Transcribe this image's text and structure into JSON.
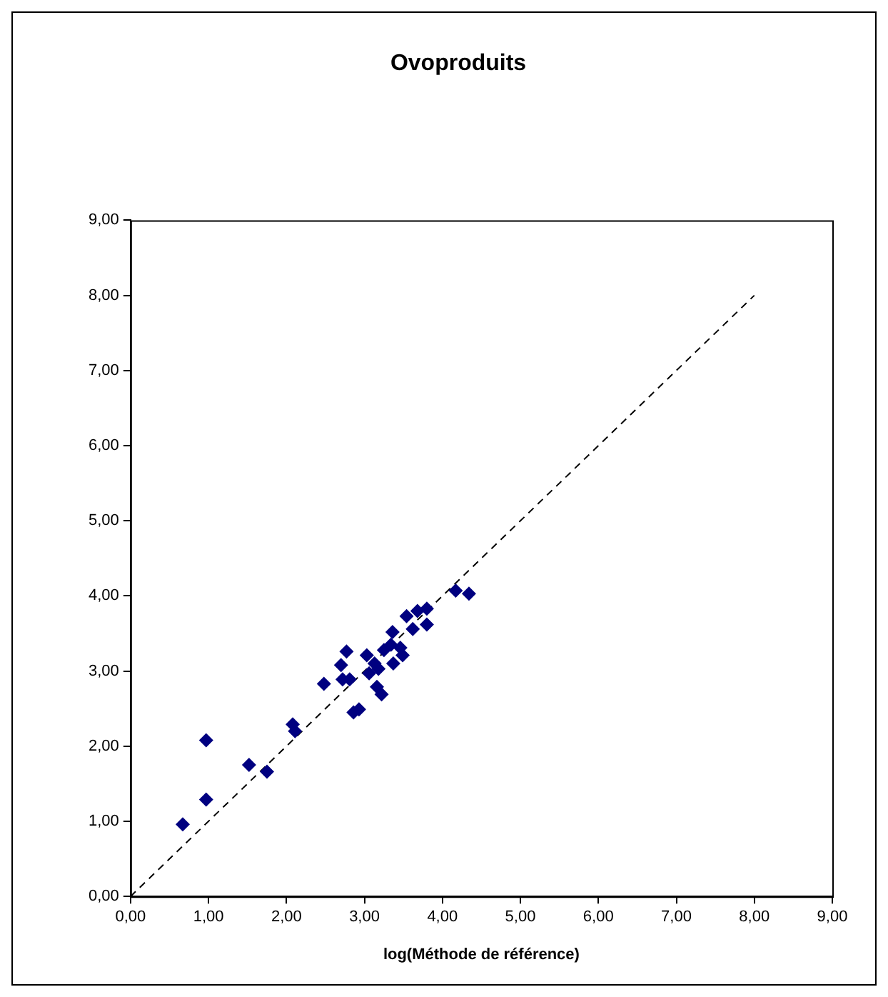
{
  "chart_data": {
    "type": "scatter",
    "title": "Ovoproduits",
    "xlabel": "log(Méthode de référence)",
    "xlim": [
      0,
      9
    ],
    "ylim": [
      0,
      9
    ],
    "xticks": [
      {
        "value": 0,
        "label": "0,00"
      },
      {
        "value": 1,
        "label": "1,00"
      },
      {
        "value": 2,
        "label": "2,00"
      },
      {
        "value": 3,
        "label": "3,00"
      },
      {
        "value": 4,
        "label": "4,00"
      },
      {
        "value": 5,
        "label": "5,00"
      },
      {
        "value": 6,
        "label": "6,00"
      },
      {
        "value": 7,
        "label": "7,00"
      },
      {
        "value": 8,
        "label": "8,00"
      },
      {
        "value": 9,
        "label": "9,00"
      }
    ],
    "yticks": [
      {
        "value": 0,
        "label": "0,00"
      },
      {
        "value": 1,
        "label": "1,00"
      },
      {
        "value": 2,
        "label": "2,00"
      },
      {
        "value": 3,
        "label": "3,00"
      },
      {
        "value": 4,
        "label": "4,00"
      },
      {
        "value": 5,
        "label": "5,00"
      },
      {
        "value": 6,
        "label": "6,00"
      },
      {
        "value": 7,
        "label": "7,00"
      },
      {
        "value": 8,
        "label": "8,00"
      },
      {
        "value": 9,
        "label": "9,00"
      }
    ],
    "grid": false,
    "legend": false,
    "series": [
      {
        "type": "scatter",
        "color": "#000080",
        "marker": "diamond",
        "x": [
          0.67,
          0.97,
          0.97,
          1.52,
          1.75,
          2.08,
          2.11,
          2.48,
          2.93,
          2.86,
          2.77,
          2.7,
          2.72,
          2.81,
          3.03,
          3.13,
          3.06,
          3.18,
          3.22,
          3.16,
          3.25,
          3.36,
          3.34,
          3.49,
          3.46,
          3.68,
          3.8,
          3.62,
          3.8,
          3.54,
          4.17,
          4.34,
          3.37
        ],
        "values": [
          0.96,
          2.08,
          1.29,
          1.75,
          1.66,
          2.29,
          2.2,
          2.83,
          2.49,
          2.45,
          3.26,
          3.08,
          2.89,
          2.89,
          3.21,
          3.1,
          2.97,
          3.03,
          2.69,
          2.79,
          3.28,
          3.52,
          3.35,
          3.21,
          3.31,
          3.8,
          3.83,
          3.56,
          3.62,
          3.73,
          4.07,
          4.03,
          3.1
        ]
      },
      {
        "type": "line",
        "color": "#000000",
        "marker": "none",
        "line_style": "dashed",
        "x": [
          0,
          8
        ],
        "values": [
          0,
          8
        ]
      }
    ]
  }
}
